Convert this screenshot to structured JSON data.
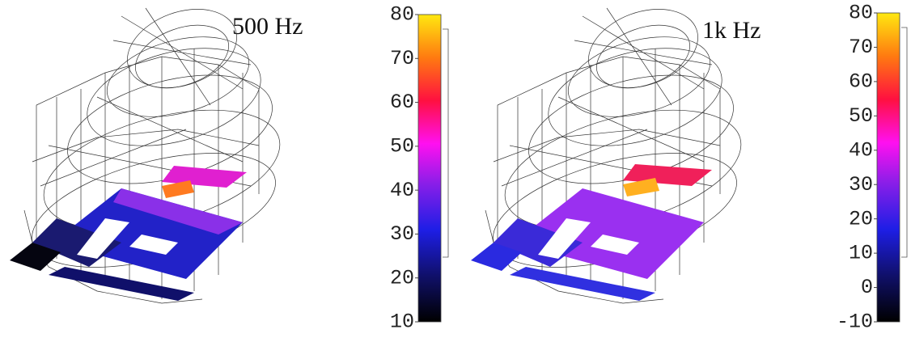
{
  "panels": [
    {
      "title": "500 Hz",
      "colorbar": {
        "lim": [
          10,
          80
        ],
        "ticks": [
          80,
          70,
          60,
          50,
          40,
          30,
          20,
          10
        ]
      }
    },
    {
      "title": "1k Hz",
      "colorbar": {
        "lim": [
          -10,
          80
        ],
        "ticks": [
          80,
          70,
          60,
          50,
          40,
          30,
          20,
          10,
          0,
          -10
        ]
      }
    }
  ]
}
